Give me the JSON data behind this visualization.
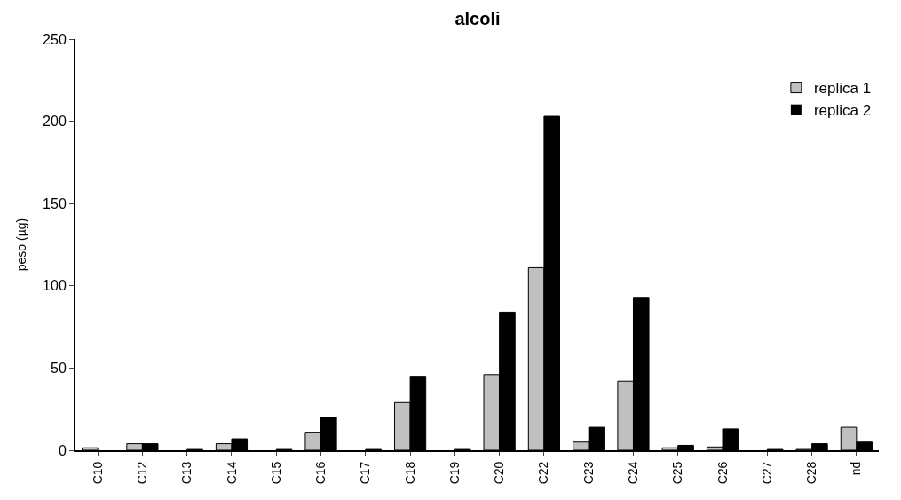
{
  "chart_data": {
    "type": "bar",
    "title": "alcoli",
    "ylabel": "peso (µg)",
    "categories": [
      "C10",
      "C12",
      "C13",
      "C14",
      "C15",
      "C16",
      "C17",
      "C18",
      "C19",
      "C20",
      "C22",
      "C23",
      "C24",
      "C25",
      "C26",
      "C27",
      "C28",
      "nd"
    ],
    "series": [
      {
        "name": "replica 1",
        "color": "#c0c0c0",
        "values": [
          1.5,
          4,
          0,
          4,
          0,
          11,
          0,
          29,
          0,
          46,
          111,
          5,
          42,
          1.5,
          2,
          0,
          0.5,
          14
        ]
      },
      {
        "name": "replica 2",
        "color": "#000000",
        "values": [
          0,
          4,
          0.5,
          7,
          0.5,
          20,
          0.5,
          45,
          0.5,
          84,
          203,
          14,
          93,
          3,
          13,
          0.5,
          4,
          5
        ]
      }
    ],
    "ylim": [
      0,
      250
    ],
    "yticks": [
      0,
      50,
      100,
      150,
      200,
      250
    ],
    "legend": "top right"
  }
}
